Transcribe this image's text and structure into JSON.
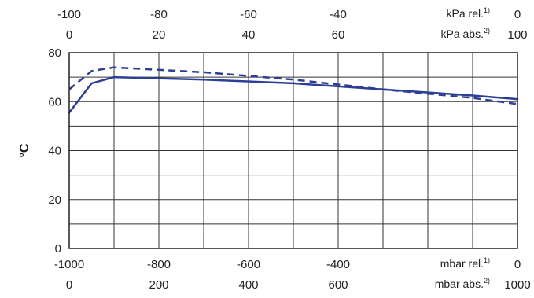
{
  "chart_data": {
    "type": "line",
    "ylabel": "°C",
    "ylim": [
      0,
      80
    ],
    "yticks": [
      "0",
      "20",
      "40",
      "60",
      "80"
    ],
    "xlim": [
      -1000,
      0
    ],
    "grid": true,
    "x_axes": {
      "top_rel": {
        "ticks": [
          "-100",
          "-80",
          "-60",
          "-40",
          "0"
        ],
        "unit": "kPa rel.",
        "unit_note": "1)"
      },
      "top_abs": {
        "ticks": [
          "0",
          "20",
          "40",
          "60",
          "100"
        ],
        "unit": "kPa abs.",
        "unit_note": "2)"
      },
      "bottom_rel": {
        "ticks": [
          "-1000",
          "-800",
          "-600",
          "-400",
          "0"
        ],
        "unit": "mbar rel.",
        "unit_note": "1)"
      },
      "bottom_abs": {
        "ticks": [
          "0",
          "200",
          "400",
          "600",
          "1000"
        ],
        "unit": "mbar abs.",
        "unit_note": "2)"
      }
    },
    "series": [
      {
        "style": "solid",
        "color": "#2c3e98",
        "points": [
          [
            -1000,
            55.5
          ],
          [
            -950,
            67.5
          ],
          [
            -900,
            70
          ],
          [
            -700,
            69
          ],
          [
            -500,
            67.5
          ],
          [
            -300,
            65
          ],
          [
            -100,
            62.5
          ],
          [
            0,
            61
          ]
        ]
      },
      {
        "style": "dashed",
        "color": "#2c3e98",
        "points": [
          [
            -1000,
            65
          ],
          [
            -950,
            72.5
          ],
          [
            -900,
            74
          ],
          [
            -700,
            72
          ],
          [
            -500,
            69
          ],
          [
            -300,
            65
          ],
          [
            -100,
            61.5
          ],
          [
            0,
            59
          ]
        ]
      }
    ]
  }
}
